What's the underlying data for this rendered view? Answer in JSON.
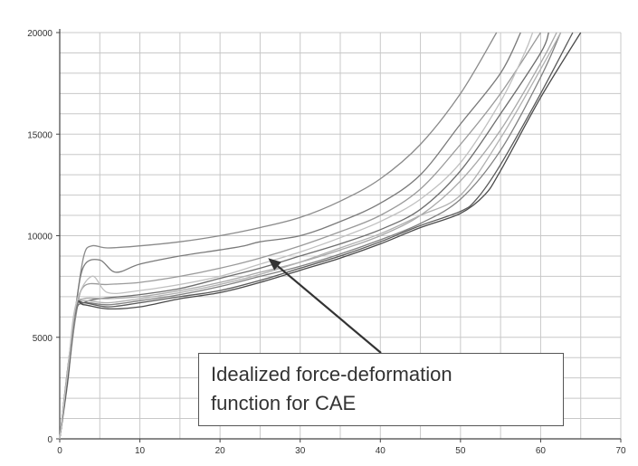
{
  "chart_data": {
    "type": "line",
    "title": "",
    "xlabel": "",
    "ylabel": "",
    "xlim": [
      0,
      70
    ],
    "ylim": [
      0,
      20000
    ],
    "x_ticks": [
      0,
      10,
      20,
      30,
      40,
      50,
      60,
      70
    ],
    "y_ticks": [
      0,
      5000,
      10000,
      15000,
      20000
    ],
    "x_grid_step": 5,
    "y_grid_step": 1000,
    "grid": true,
    "annotation": {
      "lines": [
        "Idealized force-deformation",
        "function for CAE"
      ],
      "arrow_target": {
        "x": 26,
        "y": 8900
      }
    },
    "series": [
      {
        "color": "#8a8a8a",
        "points": [
          [
            0,
            0
          ],
          [
            1,
            3500
          ],
          [
            2,
            6500
          ],
          [
            3,
            9000
          ],
          [
            4,
            9500
          ],
          [
            6,
            9400
          ],
          [
            10,
            9500
          ],
          [
            15,
            9700
          ],
          [
            20,
            10000
          ],
          [
            25,
            10400
          ],
          [
            30,
            10900
          ],
          [
            35,
            11700
          ],
          [
            40,
            12800
          ],
          [
            45,
            14500
          ],
          [
            50,
            17000
          ],
          [
            54.5,
            20000
          ]
        ]
      },
      {
        "color": "#7a7a7a",
        "points": [
          [
            0,
            0
          ],
          [
            1,
            3500
          ],
          [
            2,
            6500
          ],
          [
            3,
            8500
          ],
          [
            5,
            8800
          ],
          [
            7,
            8200
          ],
          [
            10,
            8600
          ],
          [
            15,
            9000
          ],
          [
            20,
            9300
          ],
          [
            23,
            9500
          ],
          [
            25,
            9700
          ],
          [
            30,
            10000
          ],
          [
            35,
            10700
          ],
          [
            40,
            11600
          ],
          [
            45,
            13000
          ],
          [
            50,
            15500
          ],
          [
            55,
            18000
          ],
          [
            57.5,
            20000
          ]
        ]
      },
      {
        "color": "#9a9a9a",
        "points": [
          [
            0,
            0
          ],
          [
            1,
            3000
          ],
          [
            2,
            6000
          ],
          [
            3,
            7500
          ],
          [
            6,
            7600
          ],
          [
            10,
            7700
          ],
          [
            15,
            8000
          ],
          [
            20,
            8400
          ],
          [
            25,
            8900
          ],
          [
            30,
            9500
          ],
          [
            35,
            10200
          ],
          [
            40,
            11000
          ],
          [
            45,
            12300
          ],
          [
            50,
            14500
          ],
          [
            55,
            17000
          ],
          [
            60,
            20000
          ]
        ]
      },
      {
        "color": "#6e6e6e",
        "points": [
          [
            0,
            0
          ],
          [
            1,
            3000
          ],
          [
            2,
            6200
          ],
          [
            3,
            6700
          ],
          [
            5,
            6900
          ],
          [
            10,
            7100
          ],
          [
            15,
            7400
          ],
          [
            20,
            7900
          ],
          [
            25,
            8400
          ],
          [
            30,
            9000
          ],
          [
            35,
            9600
          ],
          [
            40,
            10300
          ],
          [
            45,
            11300
          ],
          [
            50,
            13200
          ],
          [
            55,
            16000
          ],
          [
            60,
            19000
          ],
          [
            61,
            20000
          ]
        ]
      },
      {
        "color": "#a8a8a8",
        "points": [
          [
            0,
            0
          ],
          [
            1,
            3200
          ],
          [
            2,
            6400
          ],
          [
            3,
            6900
          ],
          [
            6,
            6900
          ],
          [
            10,
            7000
          ],
          [
            15,
            7300
          ],
          [
            20,
            7700
          ],
          [
            25,
            8200
          ],
          [
            30,
            8700
          ],
          [
            35,
            9300
          ],
          [
            40,
            10000
          ],
          [
            45,
            11000
          ],
          [
            50,
            12700
          ],
          [
            55,
            15200
          ],
          [
            60,
            18500
          ],
          [
            62,
            20000
          ]
        ]
      },
      {
        "color": "#808080",
        "points": [
          [
            0,
            0
          ],
          [
            1,
            2800
          ],
          [
            2,
            6300
          ],
          [
            3,
            6700
          ],
          [
            6,
            6600
          ],
          [
            10,
            6800
          ],
          [
            15,
            7100
          ],
          [
            20,
            7500
          ],
          [
            25,
            8000
          ],
          [
            30,
            8500
          ],
          [
            35,
            9100
          ],
          [
            40,
            9800
          ],
          [
            45,
            10600
          ],
          [
            50,
            11800
          ],
          [
            55,
            14200
          ],
          [
            60,
            17800
          ],
          [
            62.5,
            20000
          ]
        ]
      },
      {
        "color": "#5a5a5a",
        "points": [
          [
            0,
            0
          ],
          [
            1,
            3000
          ],
          [
            2,
            6500
          ],
          [
            3,
            6700
          ],
          [
            6,
            6500
          ],
          [
            10,
            6700
          ],
          [
            15,
            7000
          ],
          [
            20,
            7300
          ],
          [
            25,
            7800
          ],
          [
            30,
            8400
          ],
          [
            35,
            9000
          ],
          [
            40,
            9700
          ],
          [
            45,
            10500
          ],
          [
            50,
            11200
          ],
          [
            52,
            11800
          ],
          [
            55,
            13500
          ],
          [
            60,
            17000
          ],
          [
            64,
            20000
          ]
        ]
      },
      {
        "color": "#4a4a4a",
        "points": [
          [
            0,
            0
          ],
          [
            1,
            3100
          ],
          [
            2,
            6500
          ],
          [
            3,
            6600
          ],
          [
            6,
            6400
          ],
          [
            10,
            6500
          ],
          [
            15,
            6900
          ],
          [
            20,
            7200
          ],
          [
            25,
            7700
          ],
          [
            30,
            8300
          ],
          [
            35,
            8900
          ],
          [
            40,
            9600
          ],
          [
            45,
            10400
          ],
          [
            50,
            11100
          ],
          [
            53,
            12000
          ],
          [
            55,
            13200
          ],
          [
            60,
            16800
          ],
          [
            65,
            20000
          ]
        ]
      },
      {
        "color": "#b0b0b0",
        "points": [
          [
            0,
            0
          ],
          [
            1,
            3300
          ],
          [
            2,
            6500
          ],
          [
            3,
            6800
          ],
          [
            6,
            6700
          ],
          [
            10,
            6900
          ],
          [
            15,
            7200
          ],
          [
            20,
            7600
          ],
          [
            25,
            8100
          ],
          [
            30,
            8700
          ],
          [
            35,
            9400
          ],
          [
            40,
            10100
          ],
          [
            45,
            11000
          ],
          [
            50,
            12000
          ],
          [
            55,
            14800
          ],
          [
            60,
            18200
          ],
          [
            62.5,
            20000
          ]
        ]
      },
      {
        "color": "#c0c0c0",
        "points": [
          [
            0,
            0
          ],
          [
            1,
            3400
          ],
          [
            2,
            6600
          ],
          [
            4,
            8000
          ],
          [
            6,
            7200
          ],
          [
            10,
            7300
          ],
          [
            15,
            7600
          ],
          [
            20,
            8000
          ],
          [
            25,
            8600
          ],
          [
            30,
            9200
          ],
          [
            35,
            9900
          ],
          [
            40,
            10700
          ],
          [
            45,
            11800
          ],
          [
            50,
            13600
          ],
          [
            55,
            16600
          ],
          [
            58,
            19000
          ],
          [
            59,
            20000
          ]
        ]
      }
    ]
  }
}
